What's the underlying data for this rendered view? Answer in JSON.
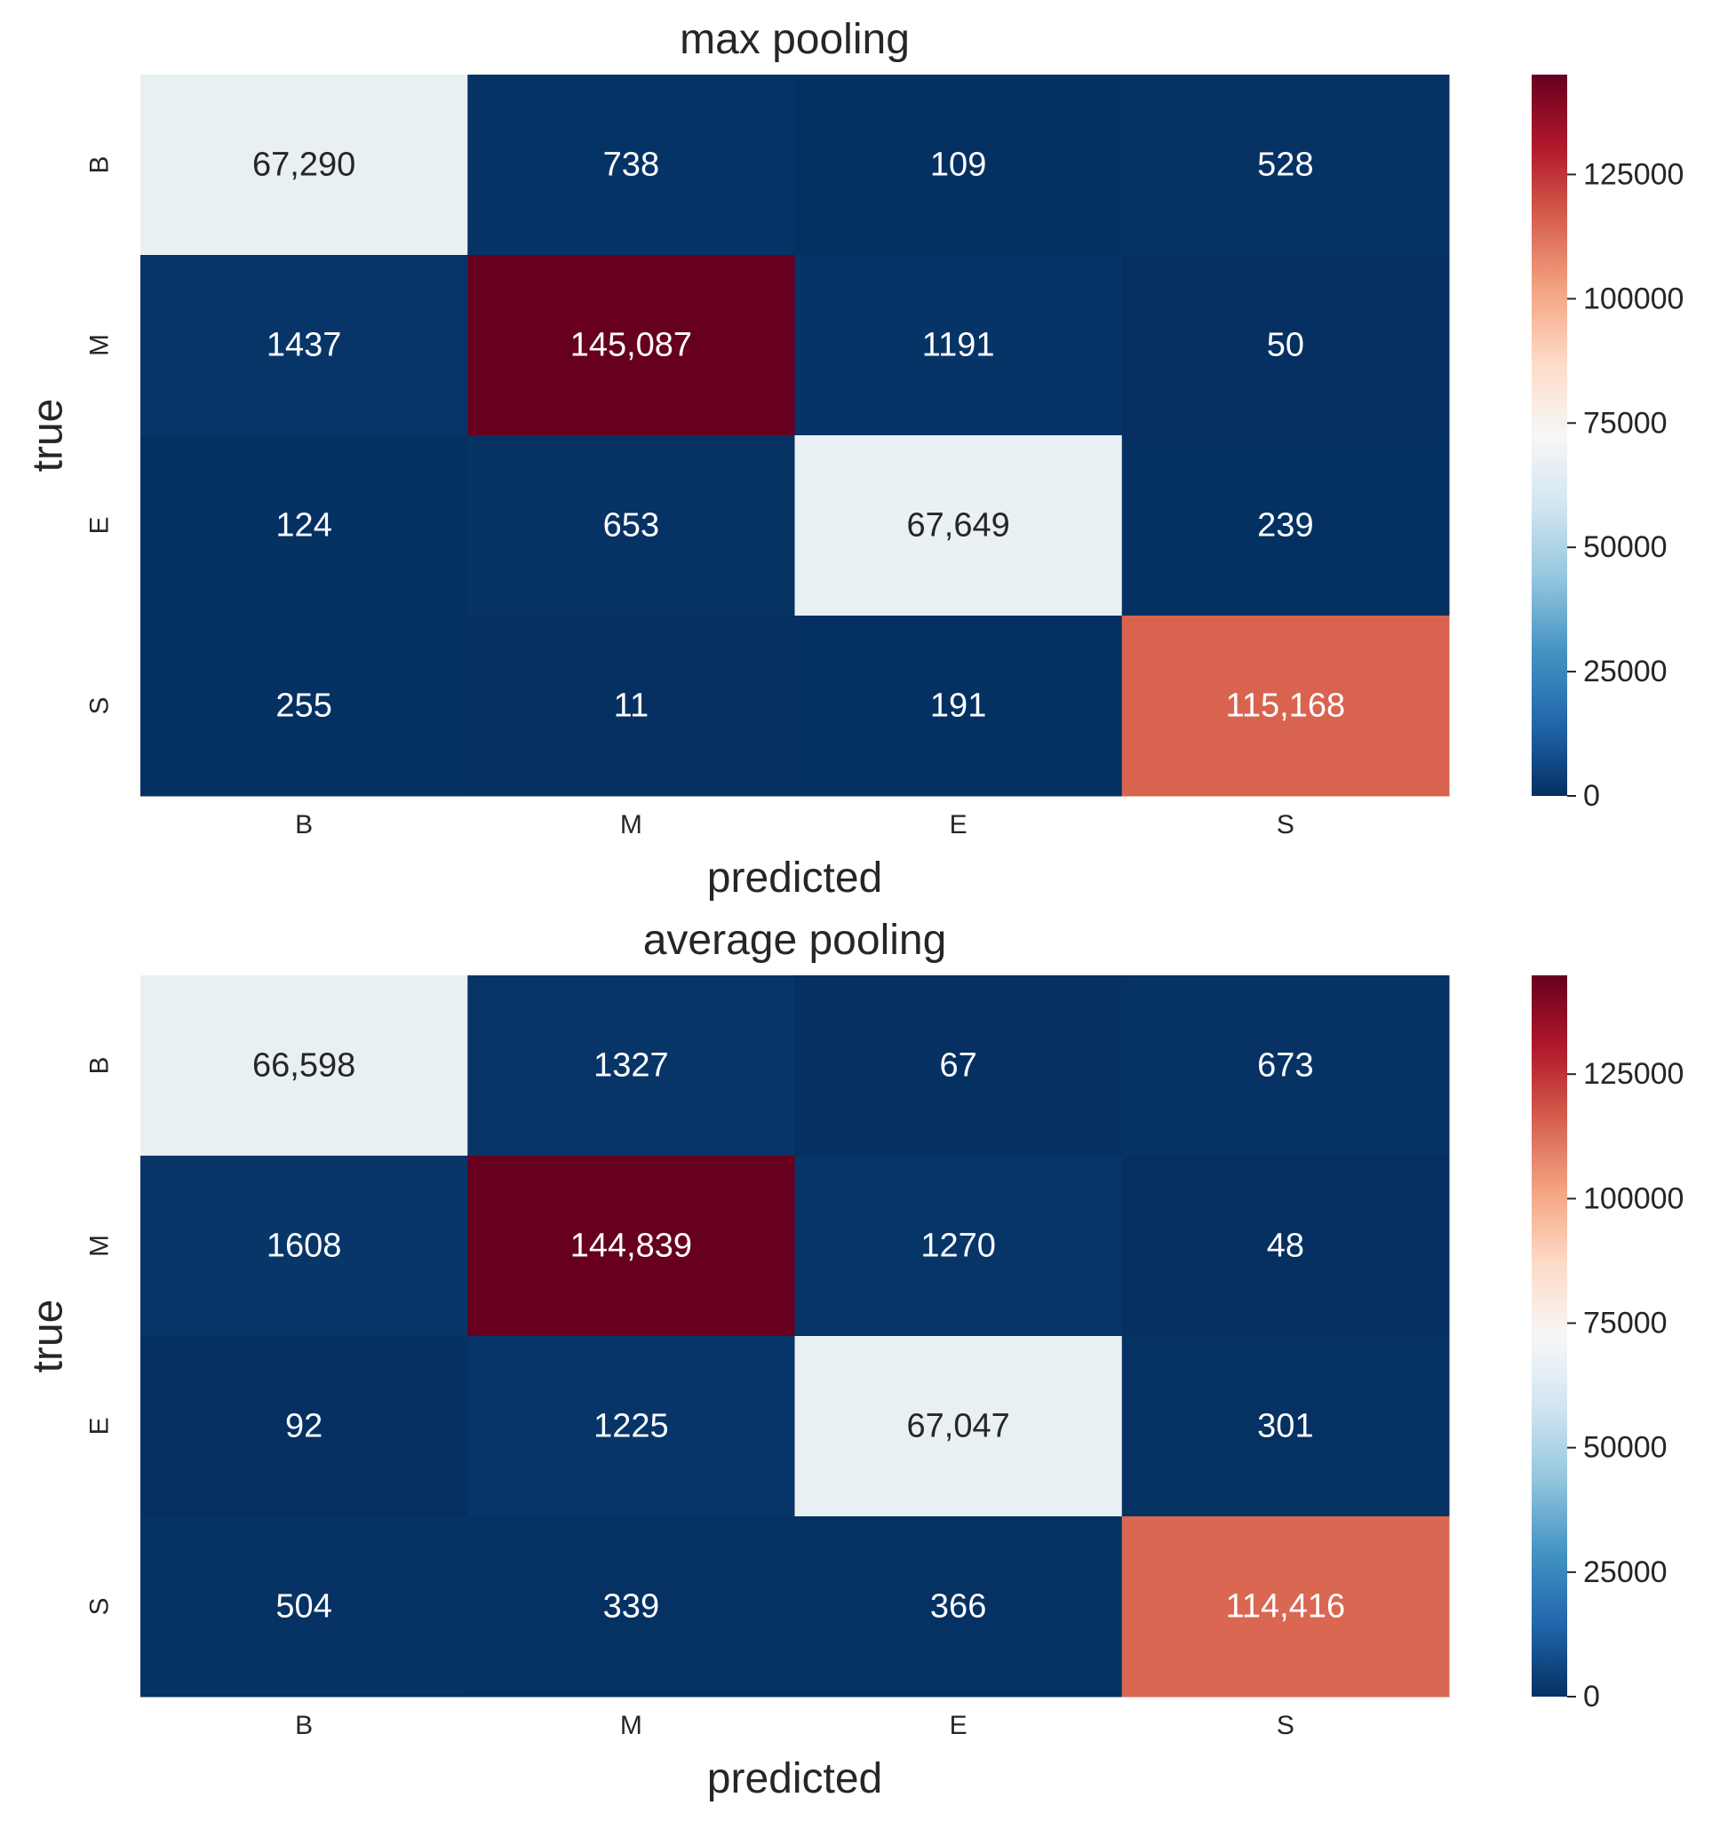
{
  "chart_data": [
    {
      "type": "heatmap",
      "title": "max pooling",
      "xlabel": "predicted",
      "ylabel": "true",
      "x_categories": [
        "B",
        "M",
        "E",
        "S"
      ],
      "y_categories": [
        "B",
        "M",
        "E",
        "S"
      ],
      "values": [
        [
          67290,
          738,
          109,
          528
        ],
        [
          1437,
          145087,
          1191,
          50
        ],
        [
          124,
          653,
          67649,
          239
        ],
        [
          255,
          11,
          191,
          115168
        ]
      ],
      "cell_labels": [
        [
          "67,290",
          "738",
          "109",
          "528"
        ],
        [
          "1437",
          "145,087",
          "1191",
          "50"
        ],
        [
          "124",
          "653",
          "67,649",
          "239"
        ],
        [
          "255",
          "11",
          "191",
          "115,168"
        ]
      ],
      "colormap": "RdBu_r",
      "vmin": 0,
      "vmax": 145087,
      "colorbar_ticks": [
        0,
        25000,
        50000,
        75000,
        100000,
        125000
      ]
    },
    {
      "type": "heatmap",
      "title": "average pooling",
      "xlabel": "predicted",
      "ylabel": "true",
      "x_categories": [
        "B",
        "M",
        "E",
        "S"
      ],
      "y_categories": [
        "B",
        "M",
        "E",
        "S"
      ],
      "values": [
        [
          66598,
          1327,
          67,
          673
        ],
        [
          1608,
          144839,
          1270,
          48
        ],
        [
          92,
          1225,
          67047,
          301
        ],
        [
          504,
          339,
          366,
          114416
        ]
      ],
      "cell_labels": [
        [
          "66,598",
          "1327",
          "67",
          "673"
        ],
        [
          "1608",
          "144,839",
          "1270",
          "48"
        ],
        [
          "92",
          "1225",
          "67,047",
          "301"
        ],
        [
          "504",
          "339",
          "366",
          "114,416"
        ]
      ],
      "colormap": "RdBu_r",
      "vmin": 0,
      "vmax": 144839,
      "colorbar_ticks": [
        0,
        25000,
        50000,
        75000,
        100000,
        125000
      ]
    }
  ]
}
